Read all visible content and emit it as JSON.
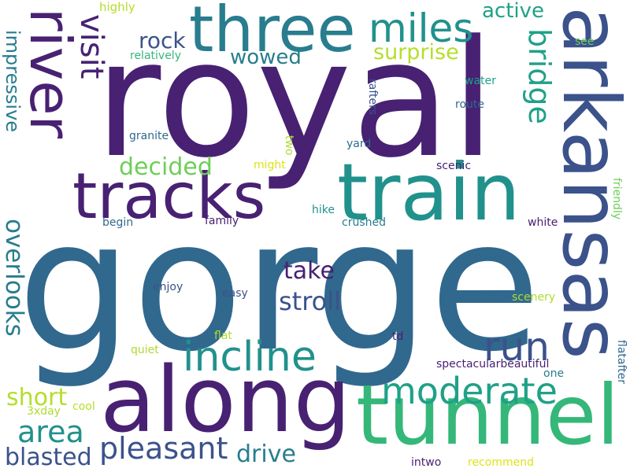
{
  "colors": {
    "background": "#ffffff",
    "palette": [
      "#482173",
      "#3b528b",
      "#31688e",
      "#287d8e",
      "#21918c",
      "#1fa187",
      "#35b779",
      "#6ece58",
      "#addc30",
      "#dde318"
    ]
  },
  "words": {
    "gorge": "gorge",
    "royal": "royal",
    "arkansas": "arkansas",
    "train": "train",
    "along": "along",
    "tunnel": "tunnel",
    "three": "three",
    "river": "river",
    "tracks": "tracks",
    "incline": "incline",
    "moderate": "moderate",
    "miles": "miles",
    "bridge": "bridge",
    "visit": "visit",
    "run": "run",
    "pleasant": "pleasant",
    "area": "area",
    "stroll": "stroll",
    "overlooks": "overlooks",
    "impressive": "impressive",
    "decided": "decided",
    "short": "short",
    "blasted": "blasted",
    "drive": "drive",
    "take": "take",
    "rock": "rock",
    "wowed": "wowed",
    "active": "active",
    "surprise": "surprise",
    "highly": "highly",
    "relatively": "relatively",
    "see": "see",
    "water": "water",
    "route": "route",
    "rafters": "rafters",
    "granite": "granite",
    "two": "two",
    "might": "might",
    "yard": "yard",
    "scenic": "scenic",
    "friendly": "friendly",
    "begin": "begin",
    "family": "family",
    "hike": "hike",
    "crushed": "crushed",
    "white": "white",
    "enjoy": "enjoy",
    "easy": "easy",
    "scenery": "scenery",
    "flat": "flat",
    "quiet": "quiet",
    "td": "td",
    "spectacularbeautiful": "spectacularbeautiful",
    "one": "one",
    "flatafter": "flatafter",
    "3xday": "3xday",
    "cool": "cool",
    "intwo": "intwo",
    "recommend": "recommend"
  }
}
